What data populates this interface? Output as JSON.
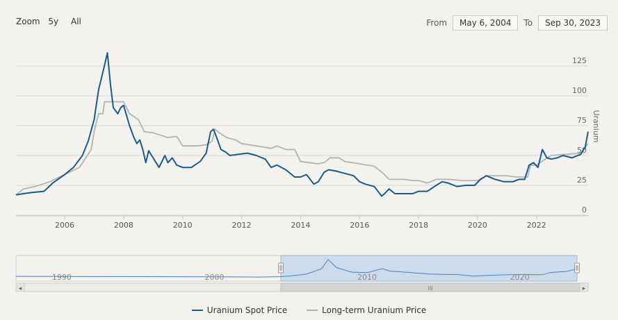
{
  "toolbar": {
    "zoom_label": "Zoom",
    "buttons": [
      "5y",
      "All"
    ],
    "from_label": "From",
    "from_value": "May 6, 2004",
    "to_label": "To",
    "to_value": "Sep 30, 2023"
  },
  "colors": {
    "spot": "#1a5a8a",
    "longterm": "#b3b3b3",
    "grid": "#d8d8d8",
    "navigator_fill": "#cddcec",
    "navigator_line": "#4b7fb8"
  },
  "scrollbar": {
    "left_arrow": "◂",
    "right_arrow": "▸",
    "grip": "III"
  },
  "chart_data": {
    "type": "line",
    "title": "",
    "ylabel": "Uranium",
    "xlabel": "",
    "xlim": [
      2004.35,
      2023.75
    ],
    "ylim": [
      0,
      150
    ],
    "x_ticks": [
      2006,
      2008,
      2010,
      2012,
      2014,
      2016,
      2018,
      2020,
      2022
    ],
    "x_tick_labels": [
      "2006",
      "2008",
      "2010",
      "2012",
      "2014",
      "2016",
      "2018",
      "2020",
      "2022"
    ],
    "y_ticks": [
      0,
      25,
      50,
      75,
      100,
      125
    ],
    "y_tick_labels": [
      "0",
      "25",
      "50",
      "75",
      "100",
      "125"
    ],
    "legend": [
      "Uranium Spot Price",
      "Long-term Uranium Price"
    ],
    "series": [
      {
        "name": "Uranium Spot Price",
        "x": [
          2004.35,
          2004.6,
          2004.9,
          2005.3,
          2005.6,
          2006.0,
          2006.3,
          2006.6,
          2006.8,
          2007.0,
          2007.15,
          2007.3,
          2007.45,
          2007.55,
          2007.65,
          2007.8,
          2007.9,
          2008.0,
          2008.2,
          2008.35,
          2008.45,
          2008.55,
          2008.65,
          2008.75,
          2008.85,
          2008.95,
          2009.2,
          2009.4,
          2009.5,
          2009.65,
          2009.8,
          2010.0,
          2010.3,
          2010.6,
          2010.8,
          2010.95,
          2011.05,
          2011.2,
          2011.3,
          2011.45,
          2011.6,
          2011.9,
          2012.2,
          2012.5,
          2012.8,
          2013.0,
          2013.2,
          2013.5,
          2013.8,
          2014.0,
          2014.2,
          2014.45,
          2014.6,
          2014.8,
          2014.95,
          2015.2,
          2015.5,
          2015.8,
          2016.0,
          2016.2,
          2016.5,
          2016.75,
          2016.85,
          2017.0,
          2017.2,
          2017.4,
          2017.8,
          2018.0,
          2018.3,
          2018.6,
          2018.8,
          2019.0,
          2019.3,
          2019.6,
          2019.9,
          2020.1,
          2020.3,
          2020.6,
          2020.9,
          2021.2,
          2021.4,
          2021.6,
          2021.75,
          2021.9,
          2022.05,
          2022.2,
          2022.35,
          2022.5,
          2022.7,
          2022.9,
          2023.2,
          2023.5,
          2023.65,
          2023.75
        ],
        "values": [
          17,
          18,
          19,
          20,
          27,
          34,
          40,
          50,
          62,
          80,
          105,
          120,
          136,
          110,
          90,
          85,
          90,
          92,
          75,
          65,
          60,
          63,
          55,
          44,
          54,
          50,
          40,
          50,
          44,
          48,
          42,
          40,
          40,
          45,
          52,
          70,
          72,
          62,
          55,
          53,
          50,
          51,
          52,
          50,
          47,
          40,
          42,
          38,
          32,
          32,
          34,
          26,
          28,
          36,
          38,
          37,
          35,
          33,
          28,
          26,
          24,
          16,
          18,
          22,
          18,
          18,
          18,
          20,
          20,
          25,
          28,
          27,
          24,
          25,
          25,
          30,
          33,
          30,
          28,
          28,
          30,
          30,
          42,
          44,
          40,
          55,
          48,
          47,
          48,
          50,
          48,
          51,
          57,
          70
        ]
      },
      {
        "name": "Long-term Uranium Price",
        "x": [
          2004.35,
          2004.6,
          2005.0,
          2005.5,
          2006.0,
          2006.5,
          2006.9,
          2007.0,
          2007.15,
          2007.3,
          2007.35,
          2007.5,
          2008.0,
          2008.2,
          2008.5,
          2008.7,
          2009.0,
          2009.5,
          2009.8,
          2010.0,
          2010.5,
          2010.8,
          2011.0,
          2011.1,
          2011.3,
          2011.5,
          2011.8,
          2012.0,
          2012.5,
          2013.0,
          2013.2,
          2013.5,
          2013.8,
          2014.0,
          2014.3,
          2014.6,
          2014.8,
          2015.0,
          2015.3,
          2015.5,
          2016.0,
          2016.5,
          2016.8,
          2017.0,
          2017.5,
          2017.8,
          2018.0,
          2018.3,
          2018.6,
          2019.0,
          2019.5,
          2020.0,
          2020.3,
          2020.6,
          2021.0,
          2021.3,
          2021.7,
          2021.8,
          2022.0,
          2022.3,
          2022.5,
          2023.0,
          2023.5,
          2023.75
        ],
        "values": [
          17,
          22,
          24,
          28,
          34,
          40,
          55,
          70,
          85,
          85,
          95,
          95,
          95,
          85,
          80,
          70,
          69,
          65,
          66,
          58,
          58,
          59,
          62,
          72,
          68,
          65,
          63,
          60,
          58,
          56,
          58,
          55,
          55,
          45,
          44,
          43,
          44,
          48,
          48,
          45,
          43,
          41,
          35,
          30,
          30,
          29,
          29,
          27,
          30,
          30,
          29,
          29,
          33,
          33,
          33,
          32,
          32,
          42,
          42,
          47,
          50,
          51,
          52,
          60
        ]
      }
    ]
  },
  "navigator": {
    "x_tick_labels": [
      "1990",
      "2000",
      "2010",
      "2020"
    ],
    "x_ticks": [
      1990,
      2000,
      2010,
      2020
    ],
    "xlim": [
      1987.0,
      2023.75
    ],
    "selected_range": [
      2004.35,
      2023.75
    ],
    "x": [
      1987.0,
      1990,
      1995,
      2000,
      2003,
      2004.35,
      2005,
      2006,
      2007,
      2007.45,
      2008,
      2009,
      2010,
      2011,
      2011.5,
      2012,
      2014,
      2016,
      2017,
      2018,
      2020,
      2021.5,
      2022,
      2022.5,
      2023,
      2023.75
    ],
    "values": [
      19,
      18,
      17,
      16,
      14,
      17,
      22,
      34,
      70,
      136,
      80,
      48,
      45,
      72,
      55,
      52,
      35,
      30,
      20,
      26,
      32,
      30,
      45,
      50,
      52,
      70
    ]
  }
}
